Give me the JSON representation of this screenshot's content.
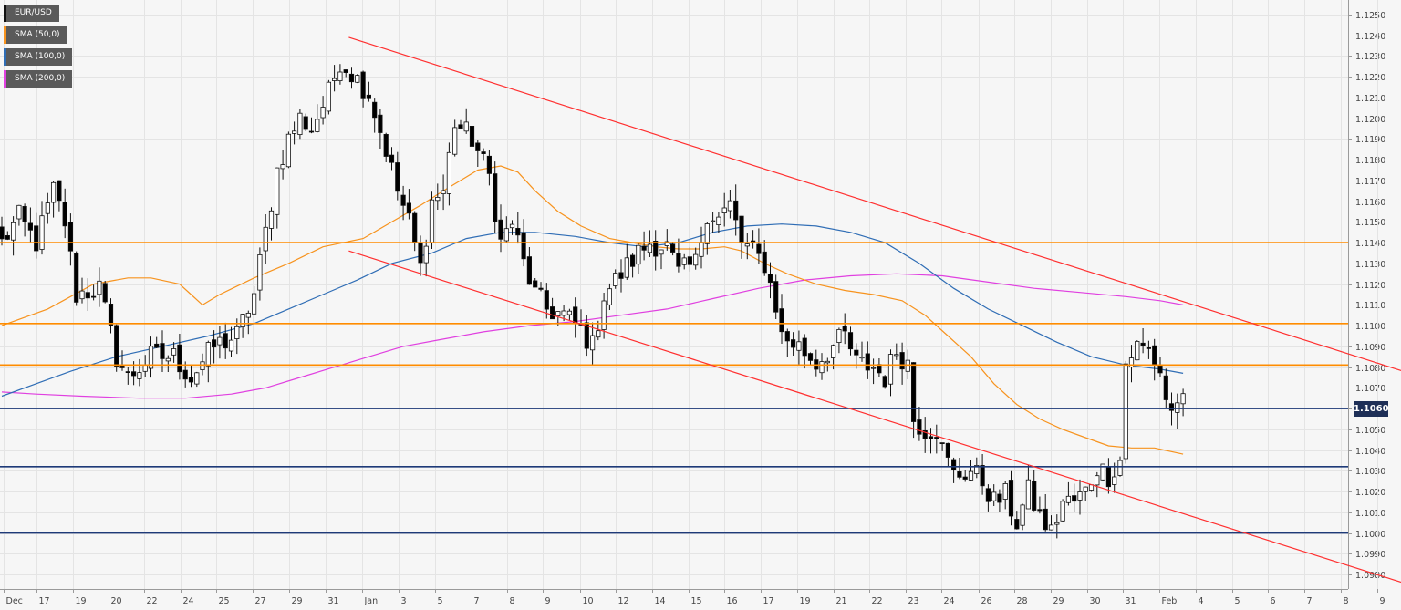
{
  "symbol": "EUR/USD",
  "last_price_tag": "1.1060",
  "legend": [
    {
      "label": "EUR/USD",
      "color": "#111111"
    },
    {
      "label": "SMA (50,0)",
      "color": "#f7931e"
    },
    {
      "label": "SMA (100,0)",
      "color": "#2f6db5"
    },
    {
      "label": "SMA (200,0)",
      "color": "#e040e0"
    }
  ],
  "colors": {
    "background": "#f6f6f6",
    "grid": "#e4e4e4",
    "bull_candle": "#ffffff",
    "bear_candle": "#000000",
    "sma50": "#f7931e",
    "sma100": "#2f6db5",
    "sma200": "#e040e0",
    "resistance": "#ff8c00",
    "support": "#1e3a78",
    "trendline": "#ff3030"
  },
  "chart_data": {
    "type": "candlestick",
    "ylim": [
      1.0973,
      1.1257
    ],
    "y_ticks": [
      "1.0980",
      "1.0990",
      "1.1000",
      "1.1010",
      "1.1020",
      "1.1030",
      "1.1040",
      "1.1050",
      "1.1060",
      "1.1070",
      "1.1080",
      "1.1090",
      "1.1100",
      "1.1110",
      "1.1120",
      "1.1130",
      "1.1140",
      "1.1150",
      "1.1160",
      "1.1170",
      "1.1180",
      "1.1190",
      "1.1200",
      "1.1210",
      "1.1220",
      "1.1230",
      "1.1240",
      "1.1250"
    ],
    "x_ticks": [
      {
        "label": "Dec",
        "bar": 0.3
      },
      {
        "label": "17",
        "bar": 6
      },
      {
        "label": "19",
        "bar": 12.4
      },
      {
        "label": "20",
        "bar": 18.6
      },
      {
        "label": "22",
        "bar": 24.8
      },
      {
        "label": "24",
        "bar": 31.2
      },
      {
        "label": "25",
        "bar": 37.4
      },
      {
        "label": "27",
        "bar": 43.8
      },
      {
        "label": "29",
        "bar": 50.1
      },
      {
        "label": "31",
        "bar": 56.4
      },
      {
        "label": "Jan",
        "bar": 62.9
      },
      {
        "label": "3",
        "bar": 69.2
      },
      {
        "label": "5",
        "bar": 75.5
      },
      {
        "label": "7",
        "bar": 81.9
      },
      {
        "label": "8",
        "bar": 88.1
      },
      {
        "label": "9",
        "bar": 94.4
      },
      {
        "label": "10",
        "bar": 100.8
      },
      {
        "label": "12",
        "bar": 107.1
      },
      {
        "label": "14",
        "bar": 113.4
      },
      {
        "label": "15",
        "bar": 119.7
      },
      {
        "label": "16",
        "bar": 126.0
      },
      {
        "label": "17",
        "bar": 132.3
      },
      {
        "label": "19",
        "bar": 138.7
      },
      {
        "label": "21",
        "bar": 145.0
      },
      {
        "label": "22",
        "bar": 151.3
      },
      {
        "label": "23",
        "bar": 157.6
      },
      {
        "label": "24",
        "bar": 163.9
      },
      {
        "label": "26",
        "bar": 170.3
      },
      {
        "label": "28",
        "bar": 176.6
      },
      {
        "label": "29",
        "bar": 182.9
      },
      {
        "label": "30",
        "bar": 189.2
      },
      {
        "label": "31",
        "bar": 195.5
      },
      {
        "label": "Feb",
        "bar": 201.9
      },
      {
        "label": "4",
        "bar": 208.2
      },
      {
        "label": "5",
        "bar": 214.5
      },
      {
        "label": "6",
        "bar": 220.8
      },
      {
        "label": "7",
        "bar": 227.2
      },
      {
        "label": "8",
        "bar": 233.5
      },
      {
        "label": "9",
        "bar": 239.8
      }
    ],
    "anchors": [
      {
        "bar": 0,
        "price": 1.114
      },
      {
        "bar": 3,
        "price": 1.1152
      },
      {
        "bar": 6,
        "price": 1.114
      },
      {
        "bar": 9,
        "price": 1.1165
      },
      {
        "bar": 11,
        "price": 1.115
      },
      {
        "bar": 13,
        "price": 1.1115
      },
      {
        "bar": 17,
        "price": 1.1118
      },
      {
        "bar": 20,
        "price": 1.1085
      },
      {
        "bar": 22,
        "price": 1.1075
      },
      {
        "bar": 26,
        "price": 1.1085
      },
      {
        "bar": 30,
        "price": 1.1085
      },
      {
        "bar": 33,
        "price": 1.1075
      },
      {
        "bar": 37,
        "price": 1.109
      },
      {
        "bar": 41,
        "price": 1.1095
      },
      {
        "bar": 44,
        "price": 1.1115
      },
      {
        "bar": 46,
        "price": 1.1145
      },
      {
        "bar": 48,
        "price": 1.1175
      },
      {
        "bar": 50,
        "price": 1.119
      },
      {
        "bar": 52,
        "price": 1.12
      },
      {
        "bar": 54,
        "price": 1.1195
      },
      {
        "bar": 57,
        "price": 1.1212
      },
      {
        "bar": 59,
        "price": 1.1228
      },
      {
        "bar": 61,
        "price": 1.1222
      },
      {
        "bar": 64,
        "price": 1.1212
      },
      {
        "bar": 67,
        "price": 1.1185
      },
      {
        "bar": 69,
        "price": 1.1165
      },
      {
        "bar": 71,
        "price": 1.115
      },
      {
        "bar": 73,
        "price": 1.1128
      },
      {
        "bar": 75,
        "price": 1.116
      },
      {
        "bar": 77,
        "price": 1.1165
      },
      {
        "bar": 79,
        "price": 1.1198
      },
      {
        "bar": 82,
        "price": 1.119
      },
      {
        "bar": 85,
        "price": 1.1172
      },
      {
        "bar": 87,
        "price": 1.114
      },
      {
        "bar": 89,
        "price": 1.115
      },
      {
        "bar": 91,
        "price": 1.113
      },
      {
        "bar": 93,
        "price": 1.1115
      },
      {
        "bar": 95,
        "price": 1.1108
      },
      {
        "bar": 98,
        "price": 1.1105
      },
      {
        "bar": 101,
        "price": 1.1098
      },
      {
        "bar": 103,
        "price": 1.109
      },
      {
        "bar": 105,
        "price": 1.1115
      },
      {
        "bar": 108,
        "price": 1.1125
      },
      {
        "bar": 111,
        "price": 1.1135
      },
      {
        "bar": 113,
        "price": 1.114
      },
      {
        "bar": 116,
        "price": 1.1138
      },
      {
        "bar": 118,
        "price": 1.1125
      },
      {
        "bar": 121,
        "price": 1.113
      },
      {
        "bar": 123,
        "price": 1.1155
      },
      {
        "bar": 125,
        "price": 1.1152
      },
      {
        "bar": 127,
        "price": 1.1158
      },
      {
        "bar": 129,
        "price": 1.114
      },
      {
        "bar": 131,
        "price": 1.1135
      },
      {
        "bar": 133,
        "price": 1.113
      },
      {
        "bar": 135,
        "price": 1.111
      },
      {
        "bar": 136,
        "price": 1.1095
      },
      {
        "bar": 139,
        "price": 1.109
      },
      {
        "bar": 142,
        "price": 1.1082
      },
      {
        "bar": 145,
        "price": 1.109
      },
      {
        "bar": 147,
        "price": 1.1095
      },
      {
        "bar": 149,
        "price": 1.1082
      },
      {
        "bar": 152,
        "price": 1.108
      },
      {
        "bar": 154,
        "price": 1.1075
      },
      {
        "bar": 156,
        "price": 1.1088
      },
      {
        "bar": 158,
        "price": 1.1082
      },
      {
        "bar": 159,
        "price": 1.1055
      },
      {
        "bar": 161,
        "price": 1.105
      },
      {
        "bar": 163,
        "price": 1.105
      },
      {
        "bar": 164,
        "price": 1.104
      },
      {
        "bar": 166,
        "price": 1.1028
      },
      {
        "bar": 169,
        "price": 1.103
      },
      {
        "bar": 171,
        "price": 1.1025
      },
      {
        "bar": 173,
        "price": 1.1015
      },
      {
        "bar": 175,
        "price": 1.1018
      },
      {
        "bar": 177,
        "price": 1.1005
      },
      {
        "bar": 179,
        "price": 1.102
      },
      {
        "bar": 181,
        "price": 1.1008
      },
      {
        "bar": 183,
        "price": 1.1
      },
      {
        "bar": 185,
        "price": 1.1015
      },
      {
        "bar": 187,
        "price": 1.1015
      },
      {
        "bar": 189,
        "price": 1.102
      },
      {
        "bar": 191,
        "price": 1.1032
      },
      {
        "bar": 193,
        "price": 1.1028
      },
      {
        "bar": 195,
        "price": 1.1035
      },
      {
        "bar": 196,
        "price": 1.1082
      },
      {
        "bar": 198,
        "price": 1.109
      },
      {
        "bar": 200,
        "price": 1.1088
      },
      {
        "bar": 202,
        "price": 1.1078
      },
      {
        "bar": 203,
        "price": 1.1065
      },
      {
        "bar": 204,
        "price": 1.1058
      },
      {
        "bar": 205,
        "price": 1.1065
      },
      {
        "bar": 206,
        "price": 1.1062
      }
    ],
    "sma50": [
      [
        0,
        1.11
      ],
      [
        8,
        1.1108
      ],
      [
        16,
        1.112
      ],
      [
        22,
        1.1123
      ],
      [
        26,
        1.1123
      ],
      [
        31,
        1.112
      ],
      [
        33,
        1.1115
      ],
      [
        35,
        1.111
      ],
      [
        38,
        1.1115
      ],
      [
        44,
        1.1123
      ],
      [
        50,
        1.113
      ],
      [
        56,
        1.1138
      ],
      [
        63,
        1.1142
      ],
      [
        68,
        1.115
      ],
      [
        73,
        1.1158
      ],
      [
        77,
        1.1165
      ],
      [
        83,
        1.1175
      ],
      [
        87,
        1.1177
      ],
      [
        90,
        1.1174
      ],
      [
        93,
        1.1165
      ],
      [
        97,
        1.1155
      ],
      [
        101,
        1.1148
      ],
      [
        106,
        1.1142
      ],
      [
        110,
        1.114
      ],
      [
        114,
        1.1138
      ],
      [
        118,
        1.1137
      ],
      [
        122,
        1.1137
      ],
      [
        126,
        1.1138
      ],
      [
        129,
        1.1136
      ],
      [
        133,
        1.113
      ],
      [
        137,
        1.1125
      ],
      [
        142,
        1.112
      ],
      [
        147,
        1.1117
      ],
      [
        152,
        1.1115
      ],
      [
        157,
        1.1112
      ],
      [
        161,
        1.1105
      ],
      [
        165,
        1.1095
      ],
      [
        169,
        1.1085
      ],
      [
        173,
        1.1072
      ],
      [
        177,
        1.1062
      ],
      [
        181,
        1.1055
      ],
      [
        185,
        1.105
      ],
      [
        189,
        1.1046
      ],
      [
        193,
        1.1042
      ],
      [
        197,
        1.1041
      ],
      [
        201,
        1.1041
      ],
      [
        206,
        1.1038
      ]
    ],
    "sma100": [
      [
        0,
        1.1066
      ],
      [
        6,
        1.1072
      ],
      [
        12,
        1.1078
      ],
      [
        20,
        1.1085
      ],
      [
        28,
        1.109
      ],
      [
        36,
        1.1095
      ],
      [
        44,
        1.1101
      ],
      [
        50,
        1.1108
      ],
      [
        56,
        1.1115
      ],
      [
        62,
        1.1122
      ],
      [
        68,
        1.113
      ],
      [
        75,
        1.1135
      ],
      [
        81,
        1.1142
      ],
      [
        87,
        1.1145
      ],
      [
        93,
        1.1145
      ],
      [
        100,
        1.1143
      ],
      [
        106,
        1.114
      ],
      [
        112,
        1.1138
      ],
      [
        118,
        1.114
      ],
      [
        124,
        1.1145
      ],
      [
        130,
        1.1148
      ],
      [
        136,
        1.1149
      ],
      [
        142,
        1.1148
      ],
      [
        148,
        1.1145
      ],
      [
        154,
        1.114
      ],
      [
        160,
        1.113
      ],
      [
        166,
        1.1118
      ],
      [
        172,
        1.1108
      ],
      [
        178,
        1.11
      ],
      [
        184,
        1.1092
      ],
      [
        190,
        1.1085
      ],
      [
        196,
        1.1081
      ],
      [
        202,
        1.1079
      ],
      [
        206,
        1.1077
      ]
    ],
    "sma200": [
      [
        0,
        1.1068
      ],
      [
        6,
        1.1067
      ],
      [
        14,
        1.1066
      ],
      [
        24,
        1.1065
      ],
      [
        32,
        1.1065
      ],
      [
        40,
        1.1067
      ],
      [
        46,
        1.107
      ],
      [
        52,
        1.1075
      ],
      [
        58,
        1.108
      ],
      [
        64,
        1.1085
      ],
      [
        70,
        1.109
      ],
      [
        76,
        1.1093
      ],
      [
        84,
        1.1097
      ],
      [
        92,
        1.11
      ],
      [
        100,
        1.1102
      ],
      [
        108,
        1.1105
      ],
      [
        116,
        1.1108
      ],
      [
        124,
        1.1113
      ],
      [
        132,
        1.1118
      ],
      [
        140,
        1.1122
      ],
      [
        148,
        1.1124
      ],
      [
        156,
        1.1125
      ],
      [
        164,
        1.1124
      ],
      [
        172,
        1.1121
      ],
      [
        180,
        1.1118
      ],
      [
        188,
        1.1116
      ],
      [
        196,
        1.1114
      ],
      [
        202,
        1.1112
      ],
      [
        206,
        1.111
      ]
    ],
    "horizontal_levels": [
      {
        "price": 1.114,
        "kind": "resistance"
      },
      {
        "price": 1.1101,
        "kind": "resistance"
      },
      {
        "price": 1.1081,
        "kind": "resistance"
      },
      {
        "price": 1.106,
        "kind": "support"
      },
      {
        "price": 1.1032,
        "kind": "support"
      },
      {
        "price": 1.1,
        "kind": "support"
      }
    ],
    "trendlines": [
      {
        "from": [
          60.5,
          1.1239
        ],
        "to": [
          245.5,
          1.1077
        ]
      },
      {
        "from": [
          60.5,
          1.1136
        ],
        "to": [
          245.5,
          1.0975
        ]
      }
    ]
  }
}
